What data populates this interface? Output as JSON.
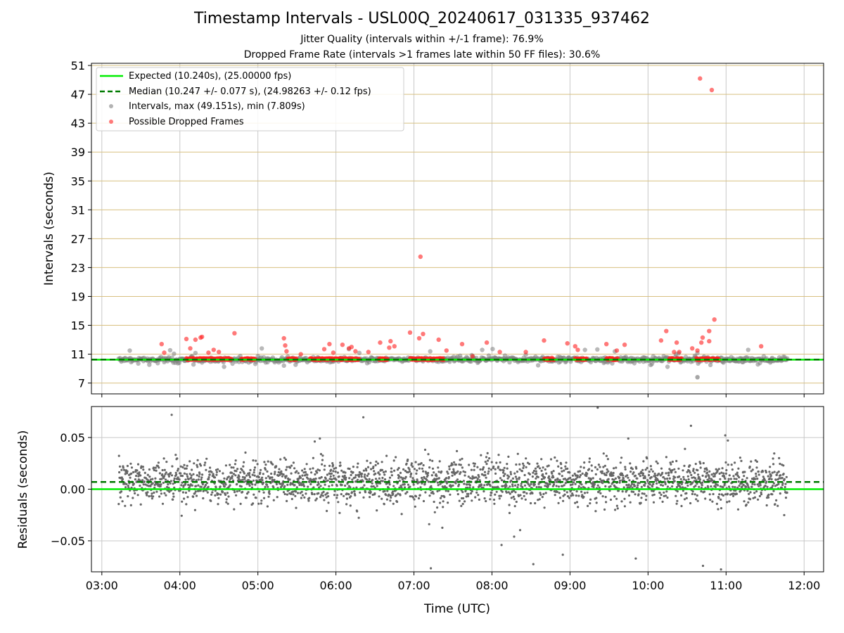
{
  "header": {
    "title": "Timestamp Intervals - USL00Q_20240617_031335_937462",
    "subtitle_1": "Jitter Quality (intervals within +/-1 frame): 76.9%",
    "subtitle_2": "Dropped Frame Rate (intervals >1 frames late within 50 FF files): 30.6%"
  },
  "colors": {
    "expected": "#00ee00",
    "median": "#007a00",
    "intervals": "#808080",
    "dropped": "#ff2020",
    "hgrid": "#d8c080",
    "vgrid": "#c8c8c8",
    "residuals": "#666666"
  },
  "chart_data": [
    {
      "type": "scatter",
      "ylabel": "Intervals (seconds)",
      "ylim": [
        5.5,
        51.3
      ],
      "yticks": [
        7,
        11,
        15,
        19,
        23,
        27,
        31,
        35,
        39,
        43,
        47,
        51
      ],
      "ytick_labels": [
        "7",
        "11",
        "15",
        "19",
        "23",
        "27",
        "31",
        "35",
        "39",
        "43",
        "47",
        "51"
      ],
      "xlim": [
        "02:52",
        "12:15"
      ],
      "xticks": [
        "03:00",
        "04:00",
        "05:00",
        "06:00",
        "07:00",
        "08:00",
        "09:00",
        "10:00",
        "11:00",
        "12:00"
      ],
      "x_data_range": [
        "03:13",
        "11:47"
      ],
      "grid": true,
      "legend_position": "top-left",
      "expected_value": 10.24,
      "median_value": 10.247,
      "legend": [
        "Expected (10.240s), (25.00000 fps)",
        "Median (10.247 +/- 0.077 s), (24.98263 +/- 0.12 fps)",
        "Intervals, max (49.151s), min (7.809s)",
        "Possible Dropped Frames"
      ],
      "series": [
        {
          "name": "Intervals, max (49.151s), min (7.809s)",
          "note_points": [
            [
              "10:38",
              7.809
            ]
          ],
          "y_range_typical": [
            9.2,
            11.8
          ]
        },
        {
          "name": "Possible Dropped Frames",
          "points": [
            [
              "03:46",
              12.4
            ],
            [
              "03:48",
              11.2
            ],
            [
              "04:05",
              13.1
            ],
            [
              "04:08",
              11.8
            ],
            [
              "04:12",
              13.0
            ],
            [
              "04:16",
              13.3
            ],
            [
              "04:17",
              13.4
            ],
            [
              "04:22",
              11.2
            ],
            [
              "04:26",
              11.6
            ],
            [
              "04:30",
              11.3
            ],
            [
              "04:42",
              13.9
            ],
            [
              "05:20",
              13.2
            ],
            [
              "05:21",
              12.2
            ],
            [
              "05:22",
              11.4
            ],
            [
              "05:33",
              11.0
            ],
            [
              "05:51",
              11.7
            ],
            [
              "05:55",
              12.4
            ],
            [
              "05:58",
              11.2
            ],
            [
              "06:05",
              12.3
            ],
            [
              "06:10",
              11.8
            ],
            [
              "06:12",
              12.0
            ],
            [
              "06:15",
              11.4
            ],
            [
              "06:25",
              11.3
            ],
            [
              "06:34",
              12.6
            ],
            [
              "06:41",
              11.9
            ],
            [
              "06:42",
              12.8
            ],
            [
              "06:45",
              12.1
            ],
            [
              "06:57",
              14.0
            ],
            [
              "07:04",
              13.2
            ],
            [
              "07:05",
              24.5
            ],
            [
              "07:07",
              13.8
            ],
            [
              "07:19",
              13.0
            ],
            [
              "07:25",
              11.5
            ],
            [
              "07:37",
              12.4
            ],
            [
              "07:45",
              10.7
            ],
            [
              "07:56",
              12.6
            ],
            [
              "08:06",
              11.3
            ],
            [
              "08:26",
              11.3
            ],
            [
              "08:40",
              12.9
            ],
            [
              "08:46",
              10.5
            ],
            [
              "08:58",
              12.5
            ],
            [
              "09:04",
              12.1
            ],
            [
              "09:06",
              11.6
            ],
            [
              "09:28",
              12.4
            ],
            [
              "09:36",
              11.5
            ],
            [
              "09:42",
              12.3
            ],
            [
              "10:10",
              12.9
            ],
            [
              "10:14",
              14.2
            ],
            [
              "10:20",
              11.3
            ],
            [
              "10:22",
              12.6
            ],
            [
              "10:24",
              11.3
            ],
            [
              "10:34",
              11.8
            ],
            [
              "10:38",
              11.5
            ],
            [
              "10:40",
              49.2
            ],
            [
              "10:41",
              12.6
            ],
            [
              "10:42",
              13.3
            ],
            [
              "10:47",
              14.2
            ],
            [
              "10:47",
              12.8
            ],
            [
              "10:49",
              47.6
            ],
            [
              "10:51",
              15.8
            ],
            [
              "11:27",
              12.1
            ]
          ],
          "dense_runs": [
            [
              "04:05",
              "04:40"
            ],
            [
              "04:47",
              "04:58"
            ],
            [
              "05:23",
              "05:30"
            ],
            [
              "05:40",
              "06:18"
            ],
            [
              "06:33",
              "06:40"
            ],
            [
              "06:57",
              "07:23"
            ],
            [
              "08:40",
              "08:48"
            ],
            [
              "09:04",
              "09:13"
            ],
            [
              "09:28",
              "09:37"
            ],
            [
              "10:16",
              "10:26"
            ],
            [
              "10:37",
              "10:55"
            ]
          ]
        }
      ]
    },
    {
      "type": "scatter",
      "ylabel": "Residuals (seconds)",
      "xlabel": "Time (UTC)",
      "ylim": [
        -0.08,
        0.08
      ],
      "yticks": [
        -0.05,
        0.0,
        0.05
      ],
      "ytick_labels": [
        "−0.05",
        "0.00",
        "0.05"
      ],
      "xlim": [
        "02:52",
        "12:15"
      ],
      "xticks": [
        "03:00",
        "04:00",
        "05:00",
        "06:00",
        "07:00",
        "08:00",
        "09:00",
        "10:00",
        "11:00",
        "12:00"
      ],
      "xtick_labels": [
        "03:00",
        "04:00",
        "05:00",
        "06:00",
        "07:00",
        "08:00",
        "09:00",
        "10:00",
        "11:00",
        "12:00"
      ],
      "grid": true,
      "expected_value": 0.0,
      "median_value": 0.007,
      "series": [
        {
          "name": "",
          "y_range_typical": [
            -0.05,
            0.06
          ]
        }
      ]
    }
  ]
}
